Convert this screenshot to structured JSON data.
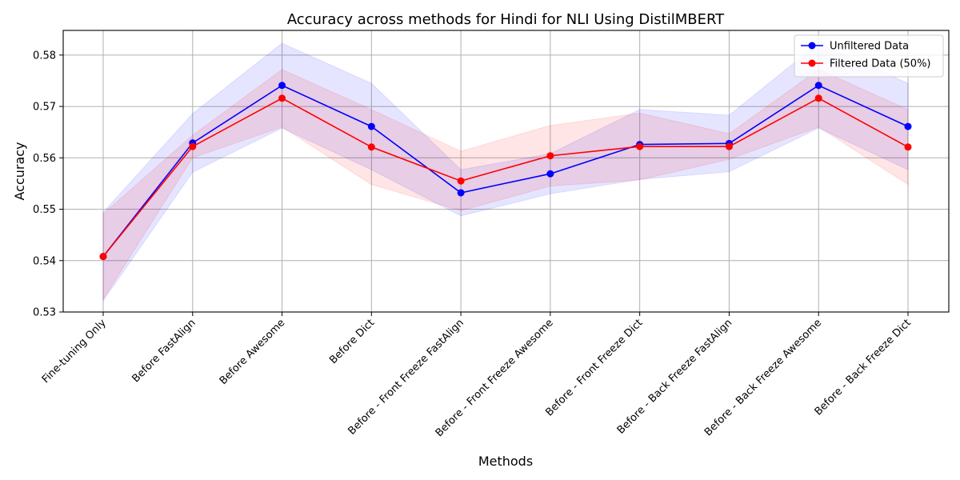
{
  "chart_data": {
    "type": "line",
    "title": "Accuracy across methods for Hindi for NLI Using DistilMBERT",
    "xlabel": "Methods",
    "ylabel": "Accuracy",
    "categories": [
      "Fine-tuning Only",
      "Before FastAlign",
      "Before Awesome",
      "Before Dict",
      "Before - Front Freeze FastAlign",
      "Before - Front Freeze Awesome",
      "Before - Front Freeze Dict",
      "Before - Back Freeze FastAlign",
      "Before - Back Freeze Awesome",
      "Before - Back Freeze Dict"
    ],
    "ylim": [
      0.53,
      0.5848
    ],
    "yticks": [
      "0.53",
      "0.54",
      "0.55",
      "0.56",
      "0.57",
      "0.58"
    ],
    "grid": true,
    "legend_position": "top-right",
    "series": [
      {
        "name": "Unfiltered Data",
        "color": "#0000ff",
        "band_color": "#0000ff",
        "values": [
          0.5408,
          0.5629,
          0.5741,
          0.5661,
          0.5532,
          0.5569,
          0.5626,
          0.5628,
          0.5741,
          0.5661
        ],
        "lower": [
          0.5322,
          0.5572,
          0.5658,
          0.5577,
          0.5487,
          0.553,
          0.5558,
          0.5573,
          0.5658,
          0.5577
        ],
        "upper": [
          0.5494,
          0.5686,
          0.5823,
          0.5745,
          0.5577,
          0.5608,
          0.5694,
          0.5683,
          0.5823,
          0.5745
        ]
      },
      {
        "name": "Filtered Data (50%)",
        "color": "#ff0000",
        "band_color": "#ff0000",
        "values": [
          0.5408,
          0.5622,
          0.5716,
          0.5621,
          0.5555,
          0.5604,
          0.5622,
          0.5622,
          0.5716,
          0.5621
        ],
        "lower": [
          0.5325,
          0.56,
          0.566,
          0.5548,
          0.5497,
          0.5545,
          0.5557,
          0.5597,
          0.566,
          0.5548
        ],
        "upper": [
          0.5491,
          0.5644,
          0.5772,
          0.5694,
          0.5613,
          0.5663,
          0.5687,
          0.5647,
          0.5772,
          0.5694
        ]
      }
    ]
  }
}
